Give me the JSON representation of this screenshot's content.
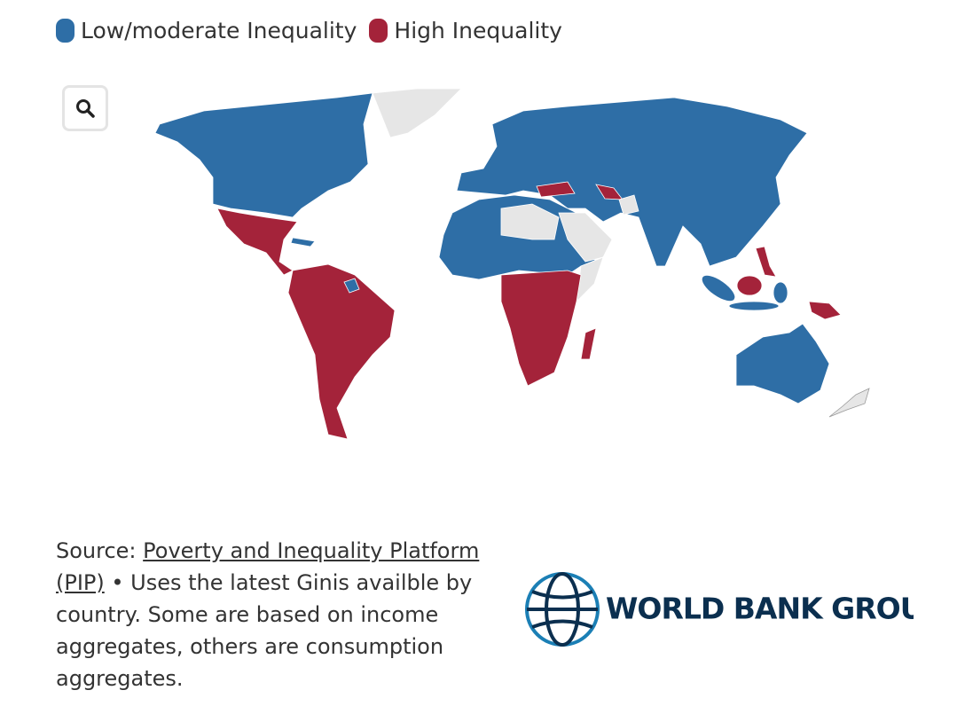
{
  "legend": [
    {
      "label": "Low/moderate Inequality",
      "color": "#2e6ea6"
    },
    {
      "label": "High Inequality",
      "color": "#a4233a"
    }
  ],
  "source": {
    "prefix": "Source:",
    "link": "Poverty and Inequality Platform (PIP)",
    "text": "• Uses the latest Ginis availble by country. Some are based on income aggregates, others are consumption aggregates."
  },
  "logo": {
    "text": "WORLD BANK GROUP"
  }
}
